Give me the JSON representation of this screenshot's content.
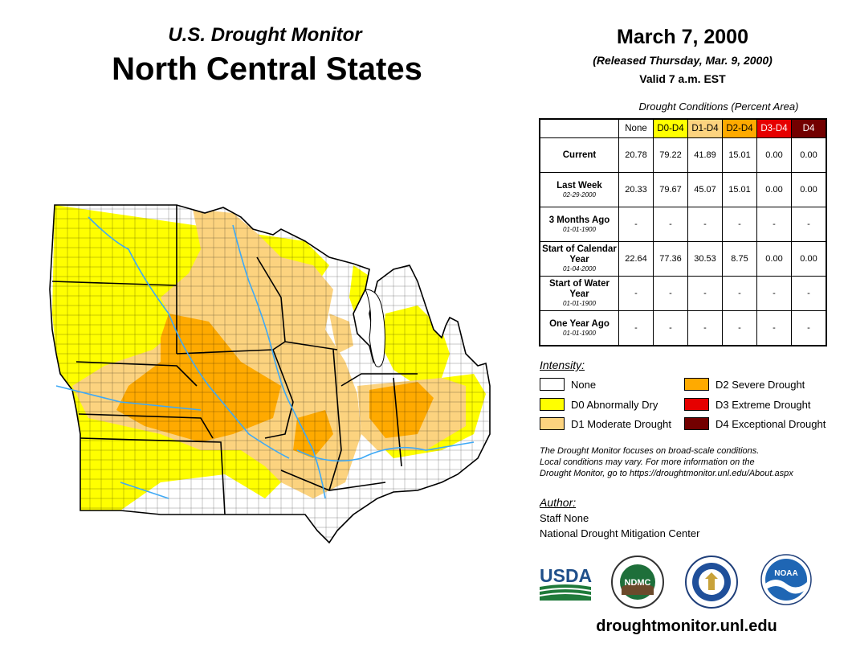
{
  "header": {
    "subtitle": "U.S. Drought Monitor",
    "title": "North Central States",
    "date": "March 7, 2000",
    "released": "(Released Thursday, Mar. 9, 2000)",
    "valid": "Valid 7 a.m. EST"
  },
  "table": {
    "caption": "Drought Conditions (Percent Area)",
    "columns": [
      {
        "label": "None",
        "color": "#ffffff",
        "text": "#000000"
      },
      {
        "label": "D0-D4",
        "color": "#ffff00",
        "text": "#000000"
      },
      {
        "label": "D1-D4",
        "color": "#fcd37f",
        "text": "#000000"
      },
      {
        "label": "D2-D4",
        "color": "#ffaa00",
        "text": "#000000"
      },
      {
        "label": "D3-D4",
        "color": "#e60000",
        "text": "#ffffff"
      },
      {
        "label": "D4",
        "color": "#730000",
        "text": "#ffffff"
      }
    ],
    "rows": [
      {
        "label": "Current",
        "sub": "",
        "values": [
          "20.78",
          "79.22",
          "41.89",
          "15.01",
          "0.00",
          "0.00"
        ]
      },
      {
        "label": "Last Week",
        "sub": "02-29-2000",
        "values": [
          "20.33",
          "79.67",
          "45.07",
          "15.01",
          "0.00",
          "0.00"
        ]
      },
      {
        "label": "3 Months Ago",
        "sub": "01-01-1900",
        "values": [
          "-",
          "-",
          "-",
          "-",
          "-",
          "-"
        ]
      },
      {
        "label": "Start of Calendar Year",
        "sub": "01-04-2000",
        "values": [
          "22.64",
          "77.36",
          "30.53",
          "8.75",
          "0.00",
          "0.00"
        ]
      },
      {
        "label": "Start of Water Year",
        "sub": "01-01-1900",
        "values": [
          "-",
          "-",
          "-",
          "-",
          "-",
          "-"
        ]
      },
      {
        "label": "One Year Ago",
        "sub": "01-01-1900",
        "values": [
          "-",
          "-",
          "-",
          "-",
          "-",
          "-"
        ]
      }
    ]
  },
  "legend": {
    "title": "Intensity:",
    "items": [
      {
        "label": "None",
        "color": "#ffffff"
      },
      {
        "label": "D0 Abnormally Dry",
        "color": "#ffff00"
      },
      {
        "label": "D1 Moderate Drought",
        "color": "#fcd37f"
      },
      {
        "label": "D2 Severe Drought",
        "color": "#ffaa00"
      },
      {
        "label": "D3 Extreme Drought",
        "color": "#e60000"
      },
      {
        "label": "D4 Exceptional Drought",
        "color": "#730000"
      }
    ]
  },
  "note": {
    "line1": "The Drought Monitor focuses on broad-scale conditions.",
    "line2": "Local conditions may vary. For more information on the",
    "line3": "Drought Monitor, go to https://droughtmonitor.unl.edu/About.aspx"
  },
  "author": {
    "label": "Author:",
    "name": "Staff None",
    "org": "National Drought Mitigation Center"
  },
  "logos": {
    "usda": "USDA",
    "ndmc": "NDMC",
    "noaa": "NOAA"
  },
  "website": "droughtmonitor.unl.edu",
  "map": {
    "colors": {
      "none": "#ffffff",
      "d0": "#ffff00",
      "d1": "#fcd37f",
      "d2": "#ffaa00",
      "water": "#3fa9f5",
      "lake": "#ffffff"
    }
  }
}
